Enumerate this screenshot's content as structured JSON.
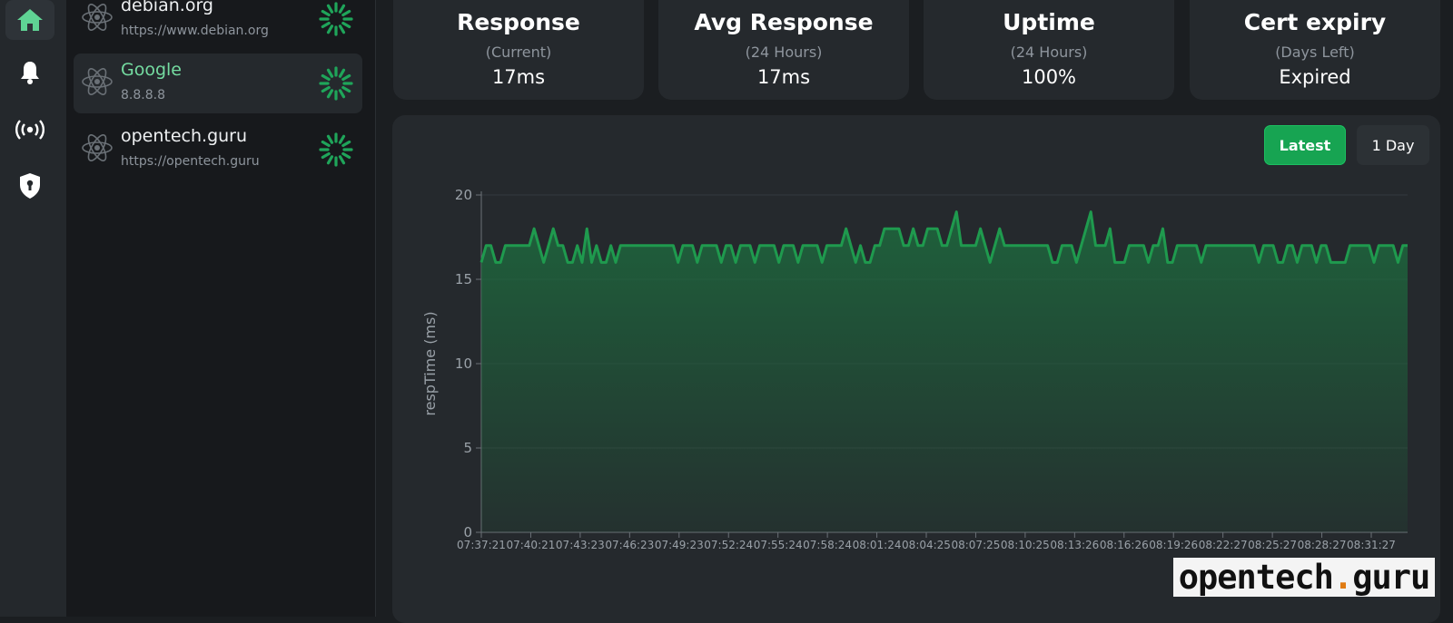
{
  "colors": {
    "accent": "#17a452",
    "line": "#1f9a4e",
    "active_text": "#74dba0"
  },
  "rail": [
    {
      "icon": "home-icon",
      "active": true
    },
    {
      "icon": "bell-icon",
      "active": false
    },
    {
      "icon": "broadcast-icon",
      "active": false
    },
    {
      "icon": "shield-icon",
      "active": false
    }
  ],
  "monitors": [
    {
      "name": "debian.org",
      "url": "https://www.debian.org",
      "active": false
    },
    {
      "name": "Google",
      "url": "8.8.8.8",
      "active": true
    },
    {
      "name": "opentech.guru",
      "url": "https://opentech.guru",
      "active": false
    }
  ],
  "stats": [
    {
      "title": "Response",
      "sub": "(Current)",
      "value": "17ms"
    },
    {
      "title": "Avg Response",
      "sub": "(24 Hours)",
      "value": "17ms"
    },
    {
      "title": "Uptime",
      "sub": "(24 Hours)",
      "value": "100%"
    },
    {
      "title": "Cert expiry",
      "sub": "(Days Left)",
      "value": "Expired"
    }
  ],
  "range_buttons": {
    "latest": "Latest",
    "day": "1 Day"
  },
  "watermark": {
    "pre": "opentech",
    "dot": ".",
    "post": "guru"
  },
  "chart_data": {
    "type": "area",
    "ylabel": "respTime (ms)",
    "xlabel": "",
    "ylim": [
      0,
      20
    ],
    "yticks": [
      0,
      5,
      10,
      15,
      20
    ],
    "grid": true,
    "xtick_labels": [
      "07:37:21",
      "07:40:21",
      "07:43:23",
      "07:46:23",
      "07:49:23",
      "07:52:24",
      "07:55:24",
      "07:58:24",
      "08:01:24",
      "08:04:25",
      "08:07:25",
      "08:10:25",
      "08:13:26",
      "08:16:26",
      "08:19:26",
      "08:22:27",
      "08:25:27",
      "08:28:27",
      "08:31:27"
    ],
    "series": [
      {
        "values": [
          16,
          17,
          17,
          16,
          16,
          17,
          17,
          17,
          17,
          17,
          17,
          18,
          17,
          16,
          17,
          18,
          17,
          17,
          16,
          16,
          17,
          16,
          18,
          16,
          17,
          16,
          16,
          17,
          16,
          17,
          17,
          17,
          17,
          17,
          17,
          17,
          17,
          17,
          17,
          17,
          17,
          16,
          17,
          17,
          17,
          16,
          17,
          17,
          17,
          17,
          16,
          17,
          17,
          16,
          17,
          17,
          17,
          16,
          17,
          17,
          17,
          17,
          16,
          17,
          17,
          17,
          16,
          17,
          17,
          17,
          17,
          16,
          17,
          17,
          17,
          17,
          18,
          17,
          16,
          17,
          16,
          16,
          17,
          17,
          18,
          18,
          18,
          18,
          17,
          17,
          18,
          17,
          17,
          18,
          18,
          18,
          17,
          17,
          18,
          19,
          17,
          17,
          17,
          17,
          18,
          17,
          16,
          17,
          18,
          17,
          17,
          17,
          17,
          17,
          17,
          17,
          17,
          17,
          17,
          16,
          16,
          17,
          17,
          17,
          16,
          17,
          18,
          19,
          17,
          17,
          17,
          18,
          16,
          16,
          16,
          17,
          17,
          17,
          17,
          16,
          17,
          17,
          18,
          16,
          16,
          17,
          17,
          17,
          17,
          17,
          16,
          17,
          17,
          17,
          17,
          17,
          17,
          17,
          17,
          17,
          17,
          17,
          16,
          17,
          17,
          17,
          16,
          16,
          17,
          17,
          16,
          17,
          17,
          17,
          16,
          17,
          17,
          16,
          16,
          16,
          16,
          17,
          17,
          17,
          17,
          17,
          16,
          17,
          17,
          17,
          17,
          16,
          17,
          17
        ]
      }
    ]
  }
}
